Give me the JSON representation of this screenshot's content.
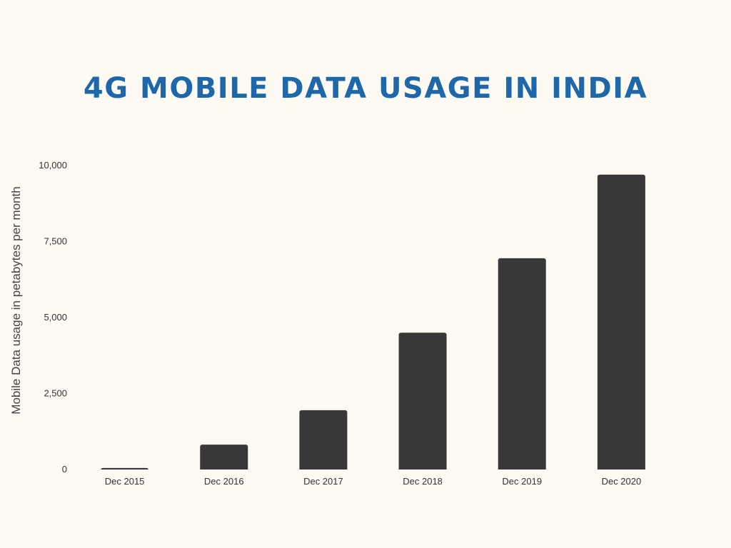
{
  "colors": {
    "background": "#fdfaf4",
    "title": "#1e67a8",
    "bar": "#383838",
    "text": "#333333"
  },
  "chart_data": {
    "type": "bar",
    "title": "4G MOBILE DATA USAGE IN INDIA",
    "xlabel": "",
    "ylabel": "Mobile Data usage in petabytes per month",
    "categories": [
      "Dec 2015",
      "Dec 2016",
      "Dec 2017",
      "Dec 2018",
      "Dec 2019",
      "Dec 2020"
    ],
    "values": [
      50,
      820,
      1950,
      4500,
      6950,
      9700
    ],
    "ylim": [
      0,
      10000
    ],
    "yticks": [
      0,
      2500,
      5000,
      7500,
      10000
    ],
    "ytick_labels": [
      "0",
      "2,500",
      "5,000",
      "7,500",
      "10,000"
    ],
    "grid": false,
    "legend": "none"
  }
}
